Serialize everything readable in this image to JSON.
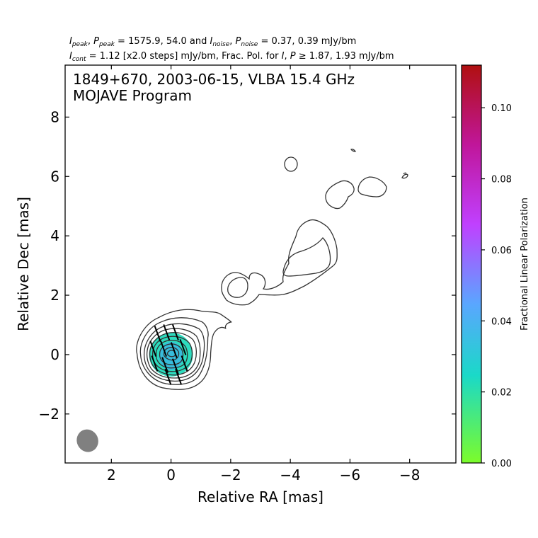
{
  "header": {
    "line1": {
      "I": "I",
      "peak": "peak",
      "P": "P",
      "Ppeak": "peak",
      "eq_values": " = 1575.9, 54.0 and ",
      "noise": "noise",
      "eq_noise": " = 0.37, 0.39 mJy/bm"
    },
    "line2": {
      "I": "I",
      "cont": "cont",
      "rest1": " = 1.12 [x2.0 steps] mJy/bm, Frac. Pol. for ",
      "P": "P",
      "geq": " ≥ 1.87, 1.93 mJy/bm"
    }
  },
  "plot_title": {
    "line1": "1849+670, 2003-06-15, VLBA 15.4 GHz",
    "line2": "MOJAVE Program"
  },
  "colorbar": {
    "label": "Fractional Linear Polarization",
    "ticks": [
      "0.00",
      "0.02",
      "0.04",
      "0.06",
      "0.08",
      "0.10"
    ],
    "min": 0.0,
    "max": 0.112,
    "colors": [
      "#7cfc2a",
      "#1ad9c8",
      "#5aa6ff",
      "#c040ff",
      "#c0169a",
      "#b01010"
    ]
  },
  "chart_data": {
    "type": "contour",
    "xlabel": "Relative RA [mas]",
    "ylabel": "Relative Dec [mas]",
    "xlim": [
      3.55,
      -9.55
    ],
    "ylim": [
      -3.65,
      9.75
    ],
    "x_ticks": [
      2,
      0,
      -2,
      -4,
      -6,
      -8
    ],
    "x_tick_labels": [
      "2",
      "0",
      "−2",
      "−4",
      "−6",
      "−8"
    ],
    "y_ticks": [
      -2,
      0,
      2,
      4,
      6,
      8
    ],
    "y_tick_labels": [
      "−2",
      "0",
      "2",
      "4",
      "6",
      "8"
    ],
    "core": {
      "x": 0.0,
      "y": 0.05
    },
    "contour_levels_mJy": [
      1.12,
      2.24,
      4.48,
      8.96,
      17.92,
      35.84,
      71.68,
      143.36,
      286.72,
      573.44,
      1146.88
    ],
    "polarized_region": {
      "x": 0.0,
      "y": 0.0,
      "frac_pol": 0.03
    },
    "evpa_vectors": [
      {
        "x": 0.45,
        "y": 0.7
      },
      {
        "x": 0.15,
        "y": 0.75
      },
      {
        "x": -0.15,
        "y": 0.75
      },
      {
        "x": 0.6,
        "y": 0.2
      },
      {
        "x": 0.25,
        "y": 0.2
      },
      {
        "x": -0.1,
        "y": 0.15
      },
      {
        "x": -0.4,
        "y": 0.25
      },
      {
        "x": 0.55,
        "y": -0.3
      },
      {
        "x": 0.2,
        "y": -0.35
      },
      {
        "x": -0.15,
        "y": -0.4
      },
      {
        "x": -0.45,
        "y": -0.3
      },
      {
        "x": 0.1,
        "y": -0.75
      },
      {
        "x": -0.25,
        "y": -0.75
      }
    ],
    "beam": {
      "x": 2.8,
      "y": -2.9,
      "major_mas": 0.85,
      "minor_mas": 0.7
    }
  }
}
